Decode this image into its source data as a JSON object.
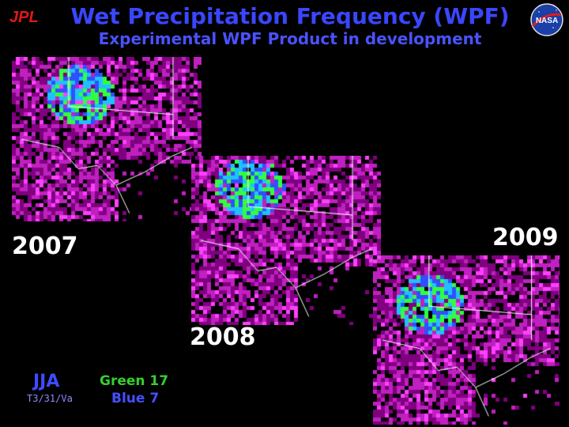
{
  "header": {
    "logo_text": "JPL",
    "title": "Wet Precipitation Frequency (WPF)",
    "subtitle": "Experimental WPF Product in development",
    "nasa_logo_text": "NASA"
  },
  "panels": [
    {
      "year": "2007"
    },
    {
      "year": "2008"
    },
    {
      "year": "2009"
    }
  ],
  "legend": {
    "season": "JJA",
    "code": "T3/31/Va",
    "green_label": "Green 17",
    "blue_label": "Blue 7"
  },
  "colors": {
    "title": "#3a46ff",
    "map_magenta": "#c020c0",
    "map_green": "#30ff40",
    "map_cyan": "#20c0ff",
    "border_white": "#ffffff"
  }
}
